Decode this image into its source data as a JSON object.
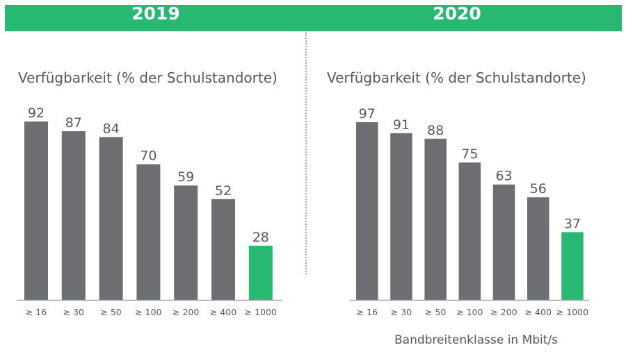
{
  "colors": {
    "banner": "#27b872",
    "bar_default": "#6d6e71",
    "bar_highlight": "#27b872",
    "axis": "#a7a7a9",
    "text": "#58585a"
  },
  "chart_data": [
    {
      "type": "bar",
      "title": "2019",
      "subtitle": "Verfügbarkeit (% der Schulstandorte)",
      "xlabel": "",
      "ylabel": "Verfügbarkeit (% der Schulstandorte)",
      "categories": [
        "≥ 16",
        "≥ 30",
        "≥ 50",
        "≥ 100",
        "≥ 200",
        "≥ 400",
        "≥ 1000"
      ],
      "values": [
        92,
        87,
        84,
        70,
        59,
        52,
        28
      ],
      "highlight_index": 6,
      "ylim": [
        0,
        100
      ],
      "grid": false,
      "data_labels": true
    },
    {
      "type": "bar",
      "title": "2020",
      "subtitle": "Verfügbarkeit (% der Schulstandorte)",
      "xlabel": "Bandbreitenklasse in Mbit/s",
      "ylabel": "Verfügbarkeit (% der Schulstandorte)",
      "categories": [
        "≥ 16",
        "≥ 30",
        "≥ 50",
        "≥ 100",
        "≥ 200",
        "≥ 400",
        "≥ 1000"
      ],
      "values": [
        97,
        91,
        88,
        75,
        63,
        56,
        37
      ],
      "highlight_index": 6,
      "ylim": [
        0,
        100
      ],
      "grid": false,
      "data_labels": true
    }
  ]
}
